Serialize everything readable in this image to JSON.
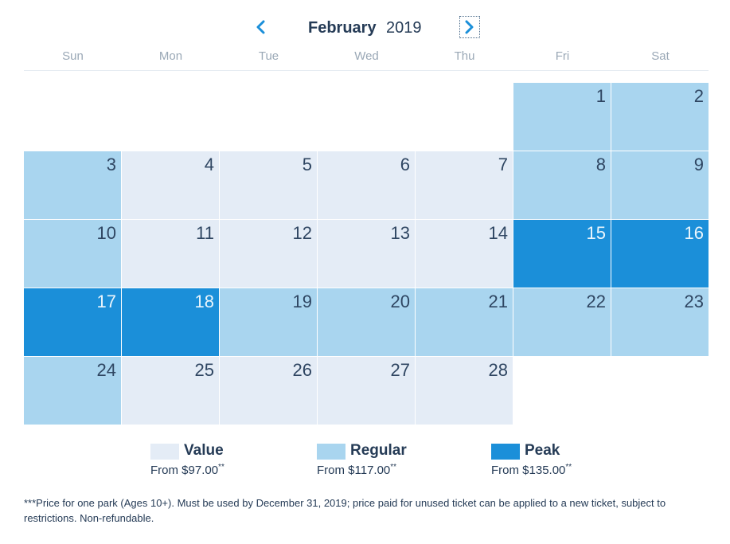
{
  "header": {
    "month": "February",
    "year": "2019",
    "prev_icon": "chevron-left-icon",
    "next_icon": "chevron-right-icon"
  },
  "weekdays": [
    "Sun",
    "Mon",
    "Tue",
    "Wed",
    "Thu",
    "Fri",
    "Sat"
  ],
  "calendar": {
    "first_weekday_index": 5,
    "days": [
      {
        "day": "1",
        "tier": "regular"
      },
      {
        "day": "2",
        "tier": "regular"
      },
      {
        "day": "3",
        "tier": "regular"
      },
      {
        "day": "4",
        "tier": "value"
      },
      {
        "day": "5",
        "tier": "value"
      },
      {
        "day": "6",
        "tier": "value"
      },
      {
        "day": "7",
        "tier": "value"
      },
      {
        "day": "8",
        "tier": "regular"
      },
      {
        "day": "9",
        "tier": "regular"
      },
      {
        "day": "10",
        "tier": "regular"
      },
      {
        "day": "11",
        "tier": "value"
      },
      {
        "day": "12",
        "tier": "value"
      },
      {
        "day": "13",
        "tier": "value"
      },
      {
        "day": "14",
        "tier": "value"
      },
      {
        "day": "15",
        "tier": "peak"
      },
      {
        "day": "16",
        "tier": "peak"
      },
      {
        "day": "17",
        "tier": "peak"
      },
      {
        "day": "18",
        "tier": "peak"
      },
      {
        "day": "19",
        "tier": "regular"
      },
      {
        "day": "20",
        "tier": "regular"
      },
      {
        "day": "21",
        "tier": "regular"
      },
      {
        "day": "22",
        "tier": "regular"
      },
      {
        "day": "23",
        "tier": "regular"
      },
      {
        "day": "24",
        "tier": "regular"
      },
      {
        "day": "25",
        "tier": "value"
      },
      {
        "day": "26",
        "tier": "value"
      },
      {
        "day": "27",
        "tier": "value"
      },
      {
        "day": "28",
        "tier": "value"
      }
    ]
  },
  "legend": [
    {
      "tier": "value",
      "name": "Value",
      "price": "From $97.00",
      "marker": "**",
      "color": "#e4ecf6"
    },
    {
      "tier": "regular",
      "name": "Regular",
      "price": "From $117.00",
      "marker": "**",
      "color": "#a9d5ef"
    },
    {
      "tier": "peak",
      "name": "Peak",
      "price": "From $135.00",
      "marker": "**",
      "color": "#1b8fd9"
    }
  ],
  "footnote": "***Price for one park (Ages 10+). Must be used by December 31, 2019; price paid for unused ticket can be applied to a new ticket, subject to restrictions. Non-refundable."
}
